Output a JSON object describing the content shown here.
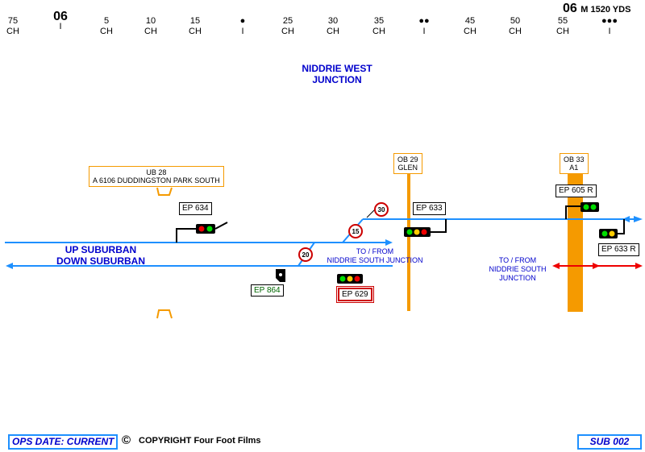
{
  "mileposts": [
    {
      "top": "75",
      "bottom": "CH"
    },
    {
      "top": "06",
      "bottom": "I",
      "major": true
    },
    {
      "top": "5",
      "bottom": "CH"
    },
    {
      "top": "10",
      "bottom": "CH"
    },
    {
      "top": "15",
      "bottom": "CH"
    },
    {
      "top": "●",
      "bottom": "I"
    },
    {
      "top": "25",
      "bottom": "CH"
    },
    {
      "top": "30",
      "bottom": "CH"
    },
    {
      "top": "35",
      "bottom": "CH"
    },
    {
      "top": "●●",
      "bottom": "I"
    },
    {
      "top": "45",
      "bottom": "CH"
    },
    {
      "top": "50",
      "bottom": "CH"
    },
    {
      "top": "55",
      "bottom": "CH"
    },
    {
      "top": "●●●",
      "bottom": "I"
    }
  ],
  "milepost_header": {
    "miles": "06",
    "rest": "M 1520 YDS"
  },
  "junction_title": {
    "line1": "NIDDRIE WEST",
    "line2": "JUNCTION"
  },
  "tracks": {
    "up": "UP SUBURBAN",
    "down": "DOWN SUBURBAN"
  },
  "bridges": {
    "ub28": {
      "line1": "UB 28",
      "line2": "A 6106 DUDDINGSTON PARK SOUTH"
    },
    "ob29": {
      "line1": "OB 29",
      "line2": "GLEN"
    },
    "ob33": {
      "line1": "OB 33",
      "line2": "A1"
    }
  },
  "signals": {
    "ep634": "EP 634",
    "ep633": "EP 633",
    "ep605r": "EP 605 R",
    "ep633r": "EP 633 R",
    "ep629": "EP 629",
    "ep864": "EP 864"
  },
  "speeds": {
    "s30": "30",
    "s15": "15",
    "s20": "20"
  },
  "notes": {
    "to_from_1": "TO / FROM",
    "to_from_1b": "NIDDRIE SOUTH  JUNCTION",
    "to_from_2a": "TO / FROM",
    "to_from_2b": "NIDDRIE SOUTH",
    "to_from_2c": "JUNCTION"
  },
  "footer": {
    "ops_date": "OPS DATE: CURRENT",
    "copyright_symbol": "©",
    "copyright": "COPYRIGHT Four Foot Films",
    "page_ref": "SUB 002"
  },
  "colors": {
    "track": "#1e90ff",
    "bridge": "#f59a00",
    "red": "#cc0000",
    "green": "#00cc00",
    "yellow": "#ffcc00"
  }
}
